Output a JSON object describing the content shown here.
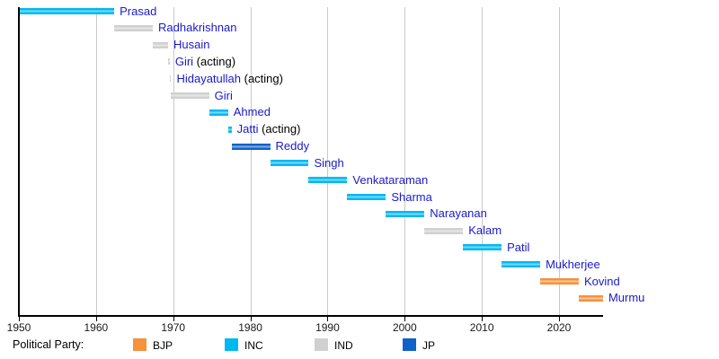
{
  "chart_data": {
    "type": "bar",
    "variant": "horizontal-timeline",
    "title": "",
    "xlabel": "",
    "ylabel": "",
    "xlim": [
      1950,
      2025.7
    ],
    "grid": "vertical-decade-lines",
    "x_ticks": [
      {
        "value": 1950,
        "label": "1950"
      },
      {
        "value": 1960,
        "label": "1960"
      },
      {
        "value": 1970,
        "label": "1970"
      },
      {
        "value": 1980,
        "label": "1980"
      },
      {
        "value": 1990,
        "label": "1990"
      },
      {
        "value": 2000,
        "label": "2000"
      },
      {
        "value": 2010,
        "label": "2010"
      },
      {
        "value": 2020,
        "label": "2020"
      }
    ],
    "bars": [
      {
        "label": "Prasad",
        "suffix": "",
        "party": "INC",
        "start": 1950.07,
        "end": 1962.36
      },
      {
        "label": "Radhakrishnan",
        "suffix": "",
        "party": "IND",
        "start": 1962.36,
        "end": 1967.36
      },
      {
        "label": "Husain",
        "suffix": "",
        "party": "IND",
        "start": 1967.36,
        "end": 1969.34
      },
      {
        "label": "Giri",
        "suffix": " (acting)",
        "party": "IND",
        "start": 1969.34,
        "end": 1969.55
      },
      {
        "label": "Hidayatullah",
        "suffix": " (acting)",
        "party": "IND",
        "start": 1969.55,
        "end": 1969.65
      },
      {
        "label": "Giri",
        "suffix": "",
        "party": "IND",
        "start": 1969.65,
        "end": 1974.65
      },
      {
        "label": "Ahmed",
        "suffix": "",
        "party": "INC",
        "start": 1974.65,
        "end": 1977.11
      },
      {
        "label": "Jatti",
        "suffix": " (acting)",
        "party": "INC",
        "start": 1977.11,
        "end": 1977.56
      },
      {
        "label": "Reddy",
        "suffix": "",
        "party": "JP",
        "start": 1977.56,
        "end": 1982.56
      },
      {
        "label": "Singh",
        "suffix": "",
        "party": "INC",
        "start": 1982.56,
        "end": 1987.56
      },
      {
        "label": "Venkataraman",
        "suffix": "",
        "party": "INC",
        "start": 1987.56,
        "end": 1992.56
      },
      {
        "label": "Sharma",
        "suffix": "",
        "party": "INC",
        "start": 1992.56,
        "end": 1997.56
      },
      {
        "label": "Narayanan",
        "suffix": "",
        "party": "INC",
        "start": 1997.56,
        "end": 2002.56
      },
      {
        "label": "Kalam",
        "suffix": "",
        "party": "IND",
        "start": 2002.56,
        "end": 2007.56
      },
      {
        "label": "Patil",
        "suffix": "",
        "party": "INC",
        "start": 2007.56,
        "end": 2012.56
      },
      {
        "label": "Mukherjee",
        "suffix": "",
        "party": "INC",
        "start": 2012.56,
        "end": 2017.56
      },
      {
        "label": "Kovind",
        "suffix": "",
        "party": "BJP",
        "start": 2017.56,
        "end": 2022.56
      },
      {
        "label": "Murmu",
        "suffix": "",
        "party": "BJP",
        "start": 2022.56,
        "end": 2025.7
      }
    ],
    "party_colors": {
      "BJP": "#f5923c",
      "INC": "#00b8f0",
      "IND": "#d0d0d0",
      "JP": "#1062c8"
    },
    "label_color": "#1a1acc",
    "suffix_color": "#000000",
    "gridline_color": "#c9c9c9",
    "axis_color": "#000000",
    "legend": {
      "title": "Political Party:",
      "entries": [
        {
          "label": "BJP",
          "color": "#f5923c"
        },
        {
          "label": "INC",
          "color": "#00b8f0"
        },
        {
          "label": "IND",
          "color": "#d0d0d0"
        },
        {
          "label": "JP",
          "color": "#1062c8"
        }
      ],
      "position": "bottom"
    }
  }
}
